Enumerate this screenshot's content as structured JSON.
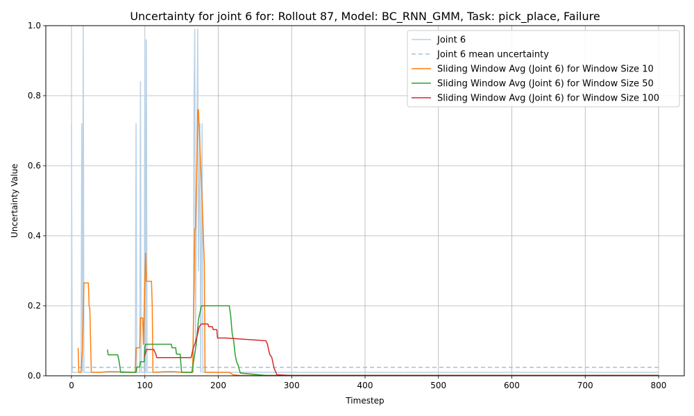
{
  "chart_data": {
    "type": "line",
    "title": "Uncertainty for joint 6 for: Rollout 87, Model: BC_RNN_GMM, Task: pick_place, Failure",
    "xlabel": "Timestep",
    "ylabel": "Uncertainty Value",
    "xlim": [
      -35,
      835
    ],
    "ylim": [
      0,
      1.0
    ],
    "xticks": [
      0,
      100,
      200,
      300,
      400,
      500,
      600,
      700,
      800
    ],
    "yticks": [
      0.0,
      0.2,
      0.4,
      0.6,
      0.8,
      1.0
    ],
    "xtick_labels": [
      "0",
      "100",
      "200",
      "300",
      "400",
      "500",
      "600",
      "700",
      "800"
    ],
    "ytick_labels": [
      "0.0",
      "0.2",
      "0.4",
      "0.6",
      "0.8",
      "1.0"
    ],
    "grid": true,
    "legend_position": "top-right",
    "series": [
      {
        "name": "Joint 6",
        "color": "#b9d1e6",
        "style": "solid",
        "points": [
          [
            0,
            0.72
          ],
          [
            1,
            0.01
          ],
          [
            13,
            0.01
          ],
          [
            14,
            0.72
          ],
          [
            15,
            0.01
          ],
          [
            16,
            1.0
          ],
          [
            17,
            0.01
          ],
          [
            87,
            0.01
          ],
          [
            88,
            0.72
          ],
          [
            89,
            0.01
          ],
          [
            93,
            0.01
          ],
          [
            94,
            0.84
          ],
          [
            95,
            0.01
          ],
          [
            99,
            0.01
          ],
          [
            100,
            0.96
          ],
          [
            101,
            0.01
          ],
          [
            102,
            0.96
          ],
          [
            103,
            0.01
          ],
          [
            166,
            0.01
          ],
          [
            167,
            0.8
          ],
          [
            168,
            0.99
          ],
          [
            169,
            0.1
          ],
          [
            172,
            0.99
          ],
          [
            173,
            0.3
          ],
          [
            175,
            0.72
          ],
          [
            176,
            0.01
          ],
          [
            178,
            0.72
          ],
          [
            179,
            0.01
          ],
          [
            800,
            0.01
          ]
        ]
      },
      {
        "name": "Joint 6 mean uncertainty",
        "color": "#9ec0da",
        "style": "dashed",
        "points": [
          [
            0,
            0.024
          ],
          [
            800,
            0.024
          ]
        ]
      },
      {
        "name": "Sliding Window Avg (Joint 6) for Window Size 10",
        "color": "#ff7f0e",
        "style": "solid",
        "points": [
          [
            9,
            0.08
          ],
          [
            10,
            0.01
          ],
          [
            13,
            0.01
          ],
          [
            15,
            0.08
          ],
          [
            17,
            0.265
          ],
          [
            23,
            0.265
          ],
          [
            24,
            0.2
          ],
          [
            25,
            0.19
          ],
          [
            27,
            0.01
          ],
          [
            40,
            0.01
          ],
          [
            50,
            0.012
          ],
          [
            60,
            0.012
          ],
          [
            87,
            0.01
          ],
          [
            88,
            0.08
          ],
          [
            93,
            0.08
          ],
          [
            94,
            0.165
          ],
          [
            97,
            0.165
          ],
          [
            98,
            0.09
          ],
          [
            100,
            0.27
          ],
          [
            101,
            0.35
          ],
          [
            102,
            0.27
          ],
          [
            109,
            0.27
          ],
          [
            110,
            0.2
          ],
          [
            111,
            0.01
          ],
          [
            130,
            0.012
          ],
          [
            140,
            0.012
          ],
          [
            150,
            0.01
          ],
          [
            165,
            0.01
          ],
          [
            167,
            0.25
          ],
          [
            168,
            0.42
          ],
          [
            169,
            0.42
          ],
          [
            171,
            0.62
          ],
          [
            172,
            0.76
          ],
          [
            173,
            0.76
          ],
          [
            176,
            0.6
          ],
          [
            177,
            0.56
          ],
          [
            178,
            0.5
          ],
          [
            181,
            0.32
          ],
          [
            182,
            0.01
          ],
          [
            200,
            0.01
          ],
          [
            215,
            0.01
          ],
          [
            220,
            0.003
          ],
          [
            230,
            0.001
          ],
          [
            800,
            0.001
          ]
        ]
      },
      {
        "name": "Sliding Window Avg (Joint 6) for Window Size 50",
        "color": "#2ca02c",
        "style": "solid",
        "points": [
          [
            49,
            0.075
          ],
          [
            50,
            0.06
          ],
          [
            63,
            0.06
          ],
          [
            65,
            0.04
          ],
          [
            67,
            0.01
          ],
          [
            88,
            0.01
          ],
          [
            89,
            0.025
          ],
          [
            93,
            0.025
          ],
          [
            94,
            0.04
          ],
          [
            99,
            0.04
          ],
          [
            100,
            0.08
          ],
          [
            101,
            0.09
          ],
          [
            136,
            0.09
          ],
          [
            137,
            0.08
          ],
          [
            142,
            0.08
          ],
          [
            143,
            0.062
          ],
          [
            148,
            0.062
          ],
          [
            150,
            0.01
          ],
          [
            164,
            0.01
          ],
          [
            167,
            0.05
          ],
          [
            170,
            0.09
          ],
          [
            173,
            0.16
          ],
          [
            175,
            0.18
          ],
          [
            177,
            0.2
          ],
          [
            215,
            0.2
          ],
          [
            217,
            0.17
          ],
          [
            219,
            0.12
          ],
          [
            221,
            0.1
          ],
          [
            223,
            0.06
          ],
          [
            225,
            0.04
          ],
          [
            227,
            0.03
          ],
          [
            230,
            0.008
          ],
          [
            250,
            0.004
          ],
          [
            265,
            0.001
          ],
          [
            800,
            0.001
          ]
        ]
      },
      {
        "name": "Sliding Window Avg (Joint 6) for Window Size 100",
        "color": "#d62728",
        "style": "solid",
        "points": [
          [
            99,
            0.055
          ],
          [
            100,
            0.06
          ],
          [
            101,
            0.065
          ],
          [
            102,
            0.075
          ],
          [
            112,
            0.075
          ],
          [
            115,
            0.062
          ],
          [
            116,
            0.052
          ],
          [
            150,
            0.052
          ],
          [
            163,
            0.052
          ],
          [
            166,
            0.08
          ],
          [
            168,
            0.09
          ],
          [
            172,
            0.12
          ],
          [
            174,
            0.14
          ],
          [
            177,
            0.148
          ],
          [
            186,
            0.148
          ],
          [
            187,
            0.14
          ],
          [
            192,
            0.14
          ],
          [
            193,
            0.132
          ],
          [
            198,
            0.132
          ],
          [
            199,
            0.108
          ],
          [
            210,
            0.108
          ],
          [
            265,
            0.1
          ],
          [
            267,
            0.09
          ],
          [
            270,
            0.062
          ],
          [
            273,
            0.052
          ],
          [
            276,
            0.022
          ],
          [
            280,
            0.003
          ],
          [
            300,
            0.001
          ],
          [
            800,
            0.001
          ]
        ]
      }
    ]
  }
}
